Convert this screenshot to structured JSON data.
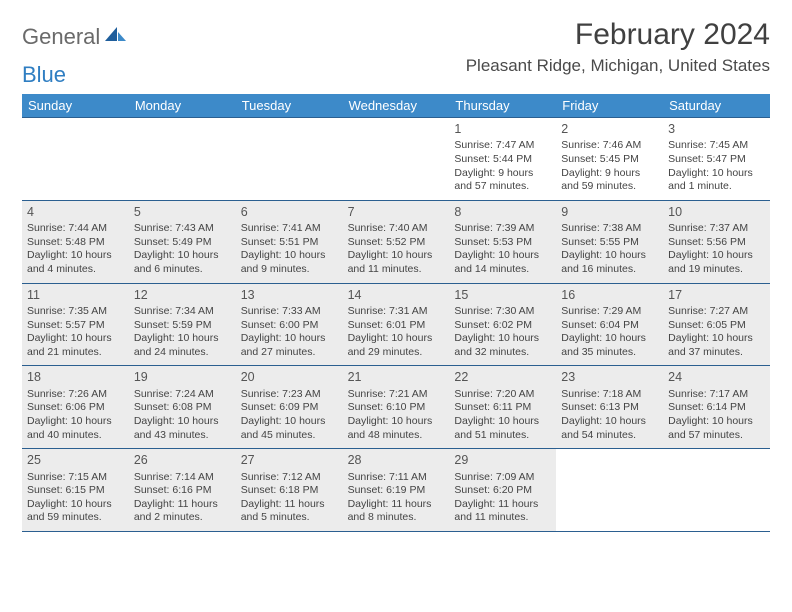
{
  "logo": {
    "word1": "General",
    "word2": "Blue"
  },
  "title": "February 2024",
  "location": "Pleasant Ridge, Michigan, United States",
  "header_bg": "#3d8ac9",
  "border_color": "#2b5f90",
  "shade_color": "#ececec",
  "weekdays": [
    "Sunday",
    "Monday",
    "Tuesday",
    "Wednesday",
    "Thursday",
    "Friday",
    "Saturday"
  ],
  "weeks": [
    [
      {
        "empty": true
      },
      {
        "empty": true
      },
      {
        "empty": true
      },
      {
        "empty": true
      },
      {
        "num": "1",
        "sunrise": "Sunrise: 7:47 AM",
        "sunset": "Sunset: 5:44 PM",
        "daylight": "Daylight: 9 hours and 57 minutes."
      },
      {
        "num": "2",
        "sunrise": "Sunrise: 7:46 AM",
        "sunset": "Sunset: 5:45 PM",
        "daylight": "Daylight: 9 hours and 59 minutes."
      },
      {
        "num": "3",
        "sunrise": "Sunrise: 7:45 AM",
        "sunset": "Sunset: 5:47 PM",
        "daylight": "Daylight: 10 hours and 1 minute."
      }
    ],
    [
      {
        "num": "4",
        "shade": true,
        "sunrise": "Sunrise: 7:44 AM",
        "sunset": "Sunset: 5:48 PM",
        "daylight": "Daylight: 10 hours and 4 minutes."
      },
      {
        "num": "5",
        "shade": true,
        "sunrise": "Sunrise: 7:43 AM",
        "sunset": "Sunset: 5:49 PM",
        "daylight": "Daylight: 10 hours and 6 minutes."
      },
      {
        "num": "6",
        "shade": true,
        "sunrise": "Sunrise: 7:41 AM",
        "sunset": "Sunset: 5:51 PM",
        "daylight": "Daylight: 10 hours and 9 minutes."
      },
      {
        "num": "7",
        "shade": true,
        "sunrise": "Sunrise: 7:40 AM",
        "sunset": "Sunset: 5:52 PM",
        "daylight": "Daylight: 10 hours and 11 minutes."
      },
      {
        "num": "8",
        "shade": true,
        "sunrise": "Sunrise: 7:39 AM",
        "sunset": "Sunset: 5:53 PM",
        "daylight": "Daylight: 10 hours and 14 minutes."
      },
      {
        "num": "9",
        "shade": true,
        "sunrise": "Sunrise: 7:38 AM",
        "sunset": "Sunset: 5:55 PM",
        "daylight": "Daylight: 10 hours and 16 minutes."
      },
      {
        "num": "10",
        "shade": true,
        "sunrise": "Sunrise: 7:37 AM",
        "sunset": "Sunset: 5:56 PM",
        "daylight": "Daylight: 10 hours and 19 minutes."
      }
    ],
    [
      {
        "num": "11",
        "shade": true,
        "sunrise": "Sunrise: 7:35 AM",
        "sunset": "Sunset: 5:57 PM",
        "daylight": "Daylight: 10 hours and 21 minutes."
      },
      {
        "num": "12",
        "shade": true,
        "sunrise": "Sunrise: 7:34 AM",
        "sunset": "Sunset: 5:59 PM",
        "daylight": "Daylight: 10 hours and 24 minutes."
      },
      {
        "num": "13",
        "shade": true,
        "sunrise": "Sunrise: 7:33 AM",
        "sunset": "Sunset: 6:00 PM",
        "daylight": "Daylight: 10 hours and 27 minutes."
      },
      {
        "num": "14",
        "shade": true,
        "sunrise": "Sunrise: 7:31 AM",
        "sunset": "Sunset: 6:01 PM",
        "daylight": "Daylight: 10 hours and 29 minutes."
      },
      {
        "num": "15",
        "shade": true,
        "sunrise": "Sunrise: 7:30 AM",
        "sunset": "Sunset: 6:02 PM",
        "daylight": "Daylight: 10 hours and 32 minutes."
      },
      {
        "num": "16",
        "shade": true,
        "sunrise": "Sunrise: 7:29 AM",
        "sunset": "Sunset: 6:04 PM",
        "daylight": "Daylight: 10 hours and 35 minutes."
      },
      {
        "num": "17",
        "shade": true,
        "sunrise": "Sunrise: 7:27 AM",
        "sunset": "Sunset: 6:05 PM",
        "daylight": "Daylight: 10 hours and 37 minutes."
      }
    ],
    [
      {
        "num": "18",
        "shade": true,
        "sunrise": "Sunrise: 7:26 AM",
        "sunset": "Sunset: 6:06 PM",
        "daylight": "Daylight: 10 hours and 40 minutes."
      },
      {
        "num": "19",
        "shade": true,
        "sunrise": "Sunrise: 7:24 AM",
        "sunset": "Sunset: 6:08 PM",
        "daylight": "Daylight: 10 hours and 43 minutes."
      },
      {
        "num": "20",
        "shade": true,
        "sunrise": "Sunrise: 7:23 AM",
        "sunset": "Sunset: 6:09 PM",
        "daylight": "Daylight: 10 hours and 45 minutes."
      },
      {
        "num": "21",
        "shade": true,
        "sunrise": "Sunrise: 7:21 AM",
        "sunset": "Sunset: 6:10 PM",
        "daylight": "Daylight: 10 hours and 48 minutes."
      },
      {
        "num": "22",
        "shade": true,
        "sunrise": "Sunrise: 7:20 AM",
        "sunset": "Sunset: 6:11 PM",
        "daylight": "Daylight: 10 hours and 51 minutes."
      },
      {
        "num": "23",
        "shade": true,
        "sunrise": "Sunrise: 7:18 AM",
        "sunset": "Sunset: 6:13 PM",
        "daylight": "Daylight: 10 hours and 54 minutes."
      },
      {
        "num": "24",
        "shade": true,
        "sunrise": "Sunrise: 7:17 AM",
        "sunset": "Sunset: 6:14 PM",
        "daylight": "Daylight: 10 hours and 57 minutes."
      }
    ],
    [
      {
        "num": "25",
        "shade": true,
        "sunrise": "Sunrise: 7:15 AM",
        "sunset": "Sunset: 6:15 PM",
        "daylight": "Daylight: 10 hours and 59 minutes."
      },
      {
        "num": "26",
        "shade": true,
        "sunrise": "Sunrise: 7:14 AM",
        "sunset": "Sunset: 6:16 PM",
        "daylight": "Daylight: 11 hours and 2 minutes."
      },
      {
        "num": "27",
        "shade": true,
        "sunrise": "Sunrise: 7:12 AM",
        "sunset": "Sunset: 6:18 PM",
        "daylight": "Daylight: 11 hours and 5 minutes."
      },
      {
        "num": "28",
        "shade": true,
        "sunrise": "Sunrise: 7:11 AM",
        "sunset": "Sunset: 6:19 PM",
        "daylight": "Daylight: 11 hours and 8 minutes."
      },
      {
        "num": "29",
        "shade": true,
        "sunrise": "Sunrise: 7:09 AM",
        "sunset": "Sunset: 6:20 PM",
        "daylight": "Daylight: 11 hours and 11 minutes."
      },
      {
        "empty": true
      },
      {
        "empty": true
      }
    ]
  ]
}
